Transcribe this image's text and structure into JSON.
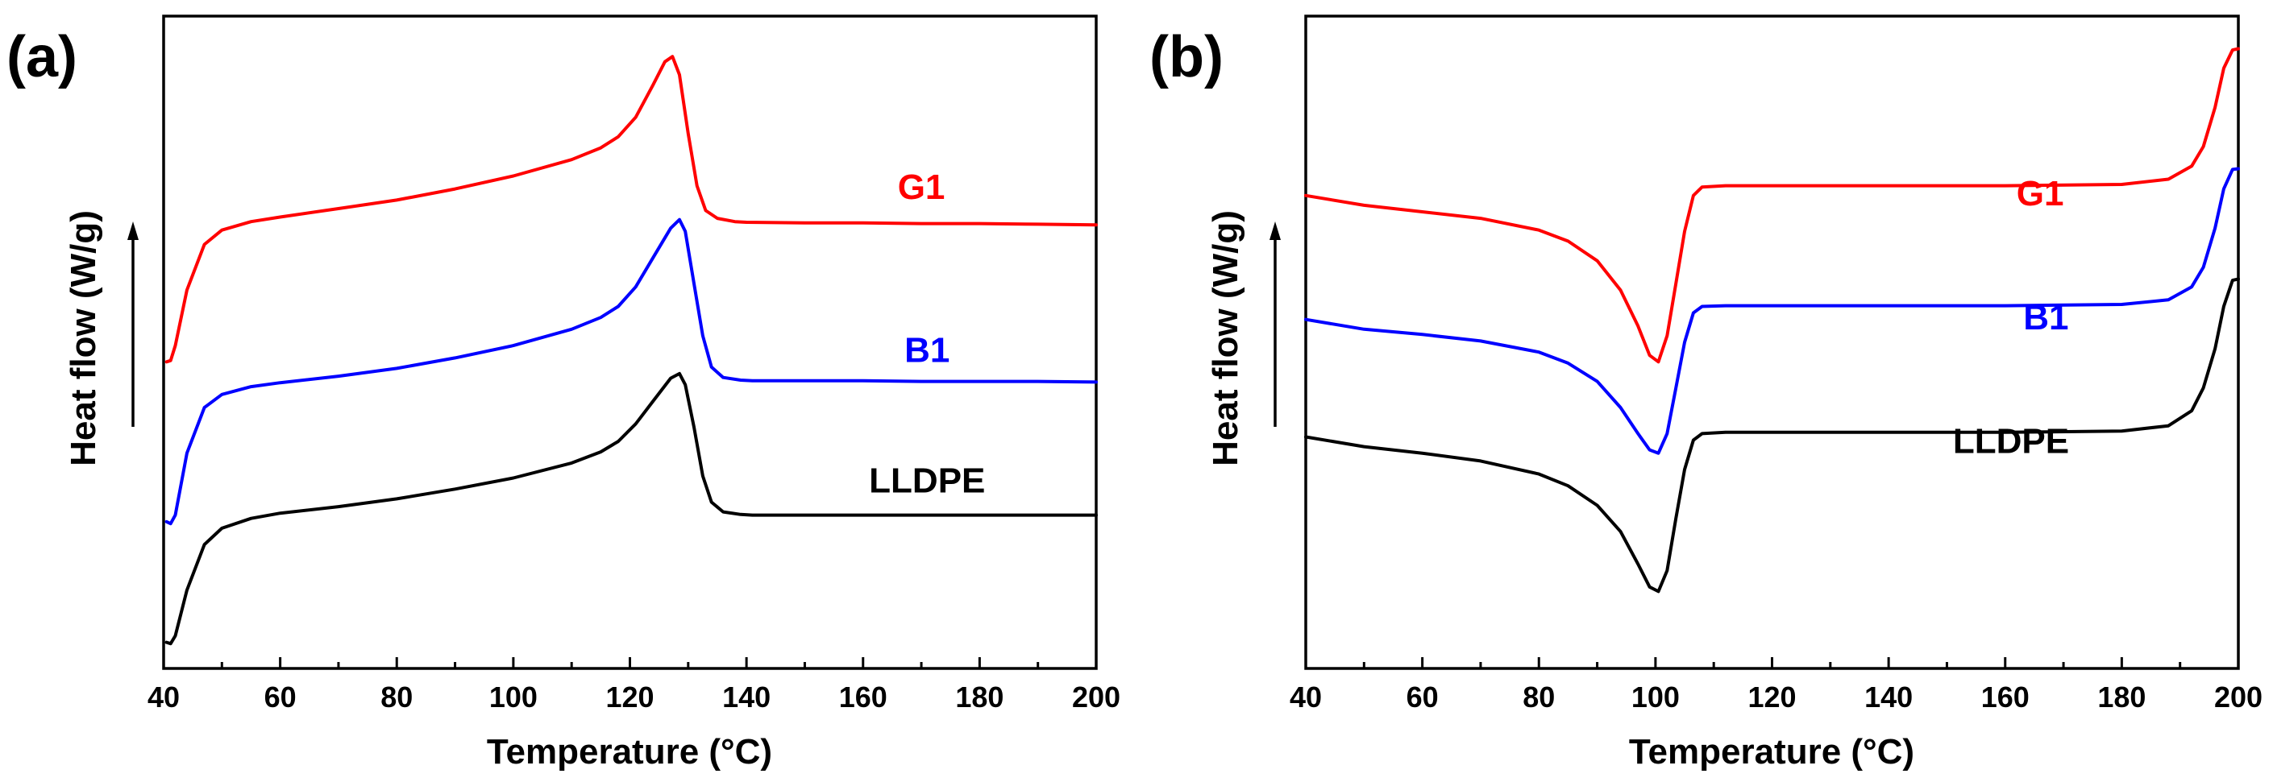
{
  "colors": {
    "G1": "#ff0000",
    "B1": "#0000ff",
    "LLDPE": "#000000"
  },
  "chart_data": [
    {
      "panel_label": "(a)",
      "type": "line",
      "xlabel": "Temperature (°C)",
      "ylabel": "Heat flow (W/g)",
      "ylabel_arrow": "up",
      "xlim": [
        40,
        200
      ],
      "ylim": [
        0,
        10
      ],
      "xticks": [
        40,
        60,
        80,
        100,
        120,
        140,
        160,
        180,
        200
      ],
      "xtick_labels": [
        "40",
        "60",
        "80",
        "100",
        "120",
        "140",
        "160",
        "180",
        "200"
      ],
      "series": [
        {
          "name": "G1",
          "label": "G1",
          "color_key": "G1",
          "x": [
            40.5,
            41.2,
            42,
            44,
            47,
            50,
            55,
            60,
            70,
            80,
            90,
            100,
            110,
            115,
            118,
            121,
            124,
            126,
            127.3,
            128.5,
            130,
            131.5,
            133,
            135,
            138,
            140,
            150,
            160,
            170,
            180,
            190,
            200
          ],
          "y": [
            4.7,
            4.72,
            4.95,
            5.8,
            6.5,
            6.72,
            6.85,
            6.92,
            7.05,
            7.18,
            7.35,
            7.55,
            7.8,
            7.98,
            8.15,
            8.45,
            8.95,
            9.3,
            9.38,
            9.1,
            8.2,
            7.4,
            7.02,
            6.9,
            6.85,
            6.84,
            6.83,
            6.83,
            6.82,
            6.82,
            6.81,
            6.8
          ]
        },
        {
          "name": "B1",
          "label": "B1",
          "color_key": "B1",
          "x": [
            40.5,
            41.2,
            42,
            44,
            47,
            50,
            55,
            60,
            70,
            80,
            90,
            100,
            110,
            115,
            118,
            121,
            124,
            127,
            128.5,
            129.5,
            131,
            132.5,
            134,
            136,
            139,
            141,
            150,
            160,
            170,
            180,
            190,
            200
          ],
          "y": [
            2.25,
            2.22,
            2.35,
            3.3,
            4.0,
            4.2,
            4.32,
            4.38,
            4.48,
            4.6,
            4.76,
            4.95,
            5.2,
            5.38,
            5.55,
            5.85,
            6.3,
            6.75,
            6.88,
            6.7,
            5.9,
            5.1,
            4.62,
            4.46,
            4.42,
            4.41,
            4.41,
            4.41,
            4.4,
            4.4,
            4.4,
            4.39
          ]
        },
        {
          "name": "LLDPE",
          "label": "LLDPE",
          "color_key": "LLDPE",
          "x": [
            40.5,
            41.2,
            42,
            44,
            47,
            50,
            55,
            60,
            70,
            80,
            90,
            100,
            110,
            115,
            118,
            121,
            124,
            127,
            128.5,
            129.5,
            131,
            132.5,
            134,
            136,
            139,
            141,
            150,
            160,
            170,
            180,
            190,
            200
          ],
          "y": [
            0.4,
            0.38,
            0.5,
            1.2,
            1.9,
            2.15,
            2.3,
            2.38,
            2.48,
            2.6,
            2.75,
            2.92,
            3.15,
            3.32,
            3.48,
            3.75,
            4.1,
            4.45,
            4.52,
            4.35,
            3.7,
            2.95,
            2.55,
            2.4,
            2.36,
            2.35,
            2.35,
            2.35,
            2.35,
            2.35,
            2.35,
            2.35
          ]
        }
      ],
      "annotations": [
        {
          "series": "G1",
          "text": "G1",
          "x": 170,
          "y": 7.2
        },
        {
          "series": "B1",
          "text": "B1",
          "x": 171,
          "y": 4.7
        },
        {
          "series": "LLDPE",
          "text": "LLDPE",
          "x": 171,
          "y": 2.7
        }
      ]
    },
    {
      "panel_label": "(b)",
      "type": "line",
      "xlabel": "Temperature (°C)",
      "ylabel": "Heat flow (W/g)",
      "ylabel_arrow": "up",
      "xlim": [
        40,
        200
      ],
      "ylim": [
        0,
        10
      ],
      "xticks": [
        40,
        60,
        80,
        100,
        120,
        140,
        160,
        180,
        200
      ],
      "xtick_labels": [
        "40",
        "60",
        "80",
        "100",
        "120",
        "140",
        "160",
        "180",
        "200"
      ],
      "series": [
        {
          "name": "G1",
          "label": "G1",
          "color_key": "G1",
          "x": [
            40,
            50,
            60,
            70,
            80,
            85,
            90,
            94,
            97,
            99,
            100.5,
            102,
            103.5,
            105,
            106.5,
            108,
            112,
            120,
            140,
            160,
            180,
            188,
            192,
            194,
            196,
            197.5,
            199,
            200
          ],
          "y": [
            7.25,
            7.1,
            7.0,
            6.9,
            6.72,
            6.55,
            6.25,
            5.8,
            5.25,
            4.8,
            4.7,
            5.1,
            5.9,
            6.7,
            7.25,
            7.38,
            7.4,
            7.4,
            7.4,
            7.4,
            7.42,
            7.5,
            7.7,
            8.0,
            8.6,
            9.2,
            9.48,
            9.5
          ]
        },
        {
          "name": "B1",
          "label": "B1",
          "color_key": "B1",
          "x": [
            40,
            50,
            60,
            70,
            80,
            85,
            90,
            94,
            97,
            99,
            100.5,
            102,
            103.5,
            105,
            106.5,
            108,
            112,
            120,
            140,
            160,
            180,
            188,
            192,
            194,
            196,
            197.5,
            199,
            200
          ],
          "y": [
            5.35,
            5.2,
            5.12,
            5.02,
            4.85,
            4.68,
            4.4,
            4.0,
            3.6,
            3.35,
            3.3,
            3.6,
            4.3,
            5.0,
            5.45,
            5.55,
            5.56,
            5.56,
            5.56,
            5.56,
            5.58,
            5.65,
            5.85,
            6.15,
            6.75,
            7.35,
            7.65,
            7.66
          ]
        },
        {
          "name": "LLDPE",
          "label": "LLDPE",
          "color_key": "LLDPE",
          "x": [
            40,
            50,
            60,
            70,
            80,
            85,
            90,
            94,
            97,
            99,
            100.5,
            102,
            103.5,
            105,
            106.5,
            108,
            112,
            120,
            140,
            160,
            180,
            188,
            192,
            194,
            196,
            197.5,
            199,
            200
          ],
          "y": [
            3.55,
            3.4,
            3.3,
            3.18,
            2.98,
            2.8,
            2.5,
            2.1,
            1.6,
            1.25,
            1.18,
            1.5,
            2.3,
            3.05,
            3.5,
            3.6,
            3.62,
            3.62,
            3.62,
            3.62,
            3.64,
            3.72,
            3.95,
            4.3,
            4.9,
            5.55,
            5.95,
            5.97
          ]
        }
      ],
      "annotations": [
        {
          "series": "G1",
          "text": "G1",
          "x": 166,
          "y": 7.1
        },
        {
          "series": "B1",
          "text": "B1",
          "x": 167,
          "y": 5.2
        },
        {
          "series": "LLDPE",
          "text": "LLDPE",
          "x": 161,
          "y": 3.3
        }
      ]
    }
  ]
}
